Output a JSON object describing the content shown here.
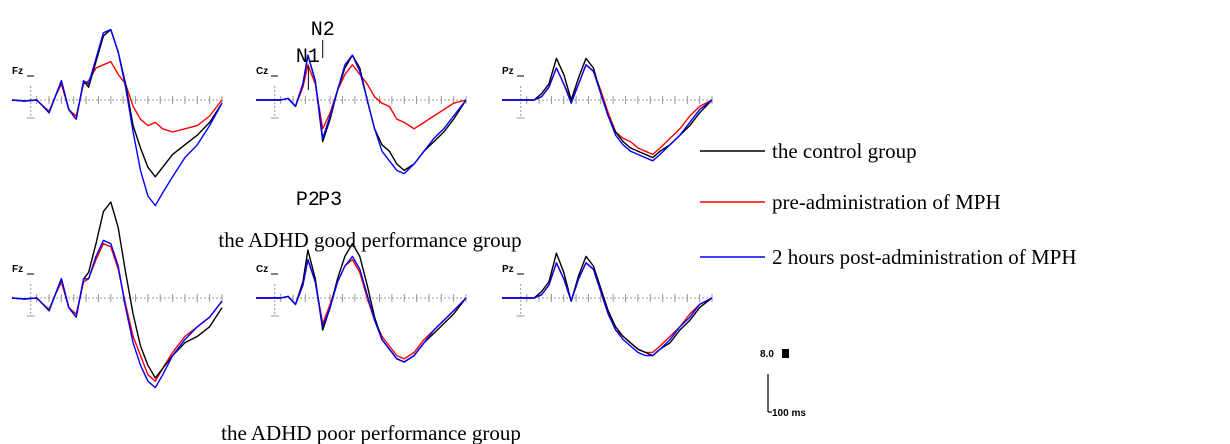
{
  "chart_data": {
    "type": "line",
    "x_unit": "ms",
    "series": [
      {
        "name": "the control group",
        "color": "#000000"
      },
      {
        "name": "pre-administration of MPH",
        "color": "#ff0000"
      },
      {
        "name": "2 hours post-administration of MPH",
        "color": "#0000ff"
      }
    ],
    "groups": [
      {
        "title": "the ADHD good performance group",
        "channels": [
          {
            "label": "Fz",
            "components": [],
            "x": [
              -100,
              -50,
              0,
              20,
              50,
              75,
              100,
              130,
              160,
              190,
              210,
              240,
              270,
              300,
              330,
              360,
              390,
              420,
              450,
              480,
              510,
              550,
              600,
              650,
              700,
              750
            ],
            "values": {
              "the control group": [
                0,
                0.3,
                0,
                1.5,
                4,
                -1,
                -6,
                3,
                6,
                -6,
                -4,
                -12,
                -20,
                -22,
                -15,
                -5,
                8,
                15,
                21,
                24,
                21,
                17,
                14,
                11,
                7,
                1
              ],
              "pre-administration of MPH": [
                0,
                0.3,
                0,
                1.5,
                3.5,
                -1,
                -5,
                3,
                5,
                -5,
                -6,
                -10,
                -11,
                -12,
                -8,
                -5,
                2,
                6,
                8,
                7,
                9,
                10,
                9,
                8,
                5,
                0
              ],
              "2 hours post-administration of MPH": [
                0,
                0.3,
                0,
                1.5,
                4,
                -1,
                -6,
                3,
                6,
                -6,
                -5,
                -13,
                -21,
                -22,
                -15,
                -4,
                10,
                22,
                30,
                33,
                29,
                24,
                18,
                14,
                8,
                1
              ]
            }
          },
          {
            "label": "Cz",
            "components": [
              "N1",
              "N2",
              "P2",
              "P3"
            ],
            "x": [
              -100,
              -50,
              0,
              30,
              60,
              90,
              110,
              140,
              170,
              200,
              230,
              260,
              290,
              320,
              350,
              380,
              410,
              440,
              470,
              500,
              540,
              580,
              620,
              660,
              700,
              750
            ],
            "values": {
              "the control group": [
                0,
                0,
                0,
                -0.5,
                2,
                -5,
                -14,
                -6,
                13,
                6,
                -3,
                -10,
                -14,
                -10,
                0,
                9,
                14,
                16,
                20,
                22,
                20,
                16,
                13,
                10,
                6,
                0
              ],
              "pre-administration of MPH": [
                0,
                0,
                0,
                -0.5,
                2,
                -4,
                -11,
                -5,
                9,
                4,
                -3,
                -8,
                -11,
                -8,
                -5,
                -1,
                1,
                2,
                6,
                7,
                9,
                7,
                5,
                3,
                1,
                0
              ],
              "2 hours post-administration of MPH": [
                0,
                0,
                0,
                -0.5,
                2,
                -5,
                -14,
                -6,
                12,
                5,
                -3,
                -11,
                -14,
                -9,
                0,
                9,
                16,
                19,
                22,
                23,
                20,
                16,
                12,
                9,
                5,
                0
              ]
            }
          },
          {
            "label": "Pz",
            "components": [],
            "x": [
              -100,
              -50,
              0,
              30,
              60,
              90,
              120,
              150,
              180,
              210,
              240,
              270,
              300,
              330,
              360,
              390,
              420,
              450,
              480,
              510,
              540,
              580,
              620,
              660,
              700,
              750
            ],
            "values": {
              "the control group": [
                0,
                0,
                0,
                0,
                -2,
                -5,
                -13,
                -8,
                0,
                -7,
                -13,
                -10,
                -2,
                5,
                10,
                13,
                15,
                16,
                17,
                18,
                16,
                14,
                11,
                8,
                4,
                0
              ],
              "pre-administration of MPH": [
                0,
                0,
                0,
                0,
                -1,
                -4,
                -10,
                -5,
                0,
                -5,
                -11,
                -9,
                -3,
                4,
                10,
                12,
                13,
                15,
                16,
                17,
                15,
                12,
                9,
                5,
                2,
                0
              ],
              "2 hours post-administration of MPH": [
                0,
                0,
                0,
                0,
                -1,
                -4,
                -10,
                -5,
                1,
                -5,
                -11,
                -9,
                -2,
                5,
                11,
                14,
                16,
                17,
                18,
                19,
                17,
                14,
                11,
                7,
                3,
                0
              ]
            }
          }
        ]
      },
      {
        "title": "the ADHD poor performance group",
        "channels": [
          {
            "label": "Fz",
            "components": [],
            "x": [
              -100,
              -50,
              0,
              20,
              50,
              75,
              100,
              130,
              160,
              190,
              210,
              240,
              270,
              300,
              330,
              360,
              390,
              420,
              450,
              480,
              510,
              550,
              600,
              650,
              700,
              750
            ],
            "values": {
              "the control group": [
                0,
                0.3,
                0,
                1.5,
                4,
                -1,
                -6,
                3,
                6,
                -6,
                -8,
                -17,
                -27,
                -30,
                -22,
                -8,
                5,
                15,
                21,
                25,
                22,
                18,
                14,
                12,
                9,
                3
              ],
              "pre-administration of MPH": [
                0,
                0.3,
                0,
                1.5,
                3.5,
                -1,
                -5,
                3,
                5,
                -5,
                -6,
                -12,
                -17,
                -16,
                -9,
                2,
                12,
                18,
                24,
                26,
                22,
                17,
                12,
                9,
                6,
                1
              ],
              "2 hours post-administration of MPH": [
                0,
                0.3,
                0,
                1.5,
                4,
                -1,
                -6,
                3,
                6,
                -6,
                -6,
                -13,
                -18,
                -17,
                -10,
                3,
                14,
                21,
                26,
                28,
                24,
                18,
                13,
                9,
                6,
                1
              ]
            }
          },
          {
            "label": "Cz",
            "components": [],
            "x": [
              -100,
              -50,
              0,
              30,
              60,
              90,
              110,
              140,
              170,
              200,
              230,
              260,
              290,
              320,
              350,
              380,
              410,
              440,
              470,
              500,
              540,
              580,
              620,
              660,
              700,
              750
            ],
            "values": {
              "the control group": [
                0,
                0,
                0,
                -0.5,
                2,
                -5,
                -15,
                -6,
                10,
                3,
                -6,
                -13,
                -17,
                -13,
                -4,
                6,
                13,
                16,
                19,
                20,
                18,
                14,
                11,
                8,
                5,
                0
              ],
              "pre-administration of MPH": [
                0,
                0,
                0,
                -0.5,
                2,
                -4,
                -12,
                -5,
                8,
                2,
                -5,
                -10,
                -12,
                -8,
                0,
                7,
                12,
                15,
                18,
                19,
                17,
                13,
                10,
                7,
                4,
                0
              ],
              "2 hours post-administration of MPH": [
                0,
                0,
                0,
                -0.5,
                2,
                -4,
                -12,
                -5,
                9,
                3,
                -5,
                -10,
                -13,
                -9,
                -1,
                7,
                13,
                16,
                19,
                20,
                18,
                14,
                10,
                7,
                4,
                0
              ]
            }
          },
          {
            "label": "Pz",
            "components": [],
            "x": [
              -100,
              -50,
              0,
              30,
              60,
              90,
              120,
              150,
              180,
              210,
              240,
              270,
              300,
              330,
              360,
              390,
              420,
              450,
              480,
              510,
              540,
              580,
              620,
              660,
              700,
              750
            ],
            "values": {
              "the control group": [
                0,
                0,
                0,
                0,
                -2,
                -5,
                -14,
                -8,
                1,
                -7,
                -13,
                -10,
                -3,
                4,
                9,
                12,
                14,
                16,
                17,
                18,
                16,
                14,
                10,
                7,
                3,
                0
              ],
              "pre-administration of MPH": [
                0,
                0,
                0,
                0,
                -1,
                -4,
                -11,
                -6,
                1,
                -6,
                -11,
                -9,
                -2,
                5,
                10,
                12,
                14,
                16,
                17,
                17,
                15,
                12,
                9,
                5,
                2,
                0
              ],
              "2 hours post-administration of MPH": [
                0,
                0,
                0,
                0,
                -1,
                -4,
                -11,
                -6,
                1,
                -6,
                -11,
                -9,
                -2,
                5,
                10,
                13,
                15,
                17,
                18,
                18,
                16,
                13,
                9,
                6,
                2,
                0
              ]
            }
          }
        ]
      }
    ],
    "scale_bar": {
      "amplitude_label": "8.0 ",
      "time_label": "100 ms"
    }
  }
}
